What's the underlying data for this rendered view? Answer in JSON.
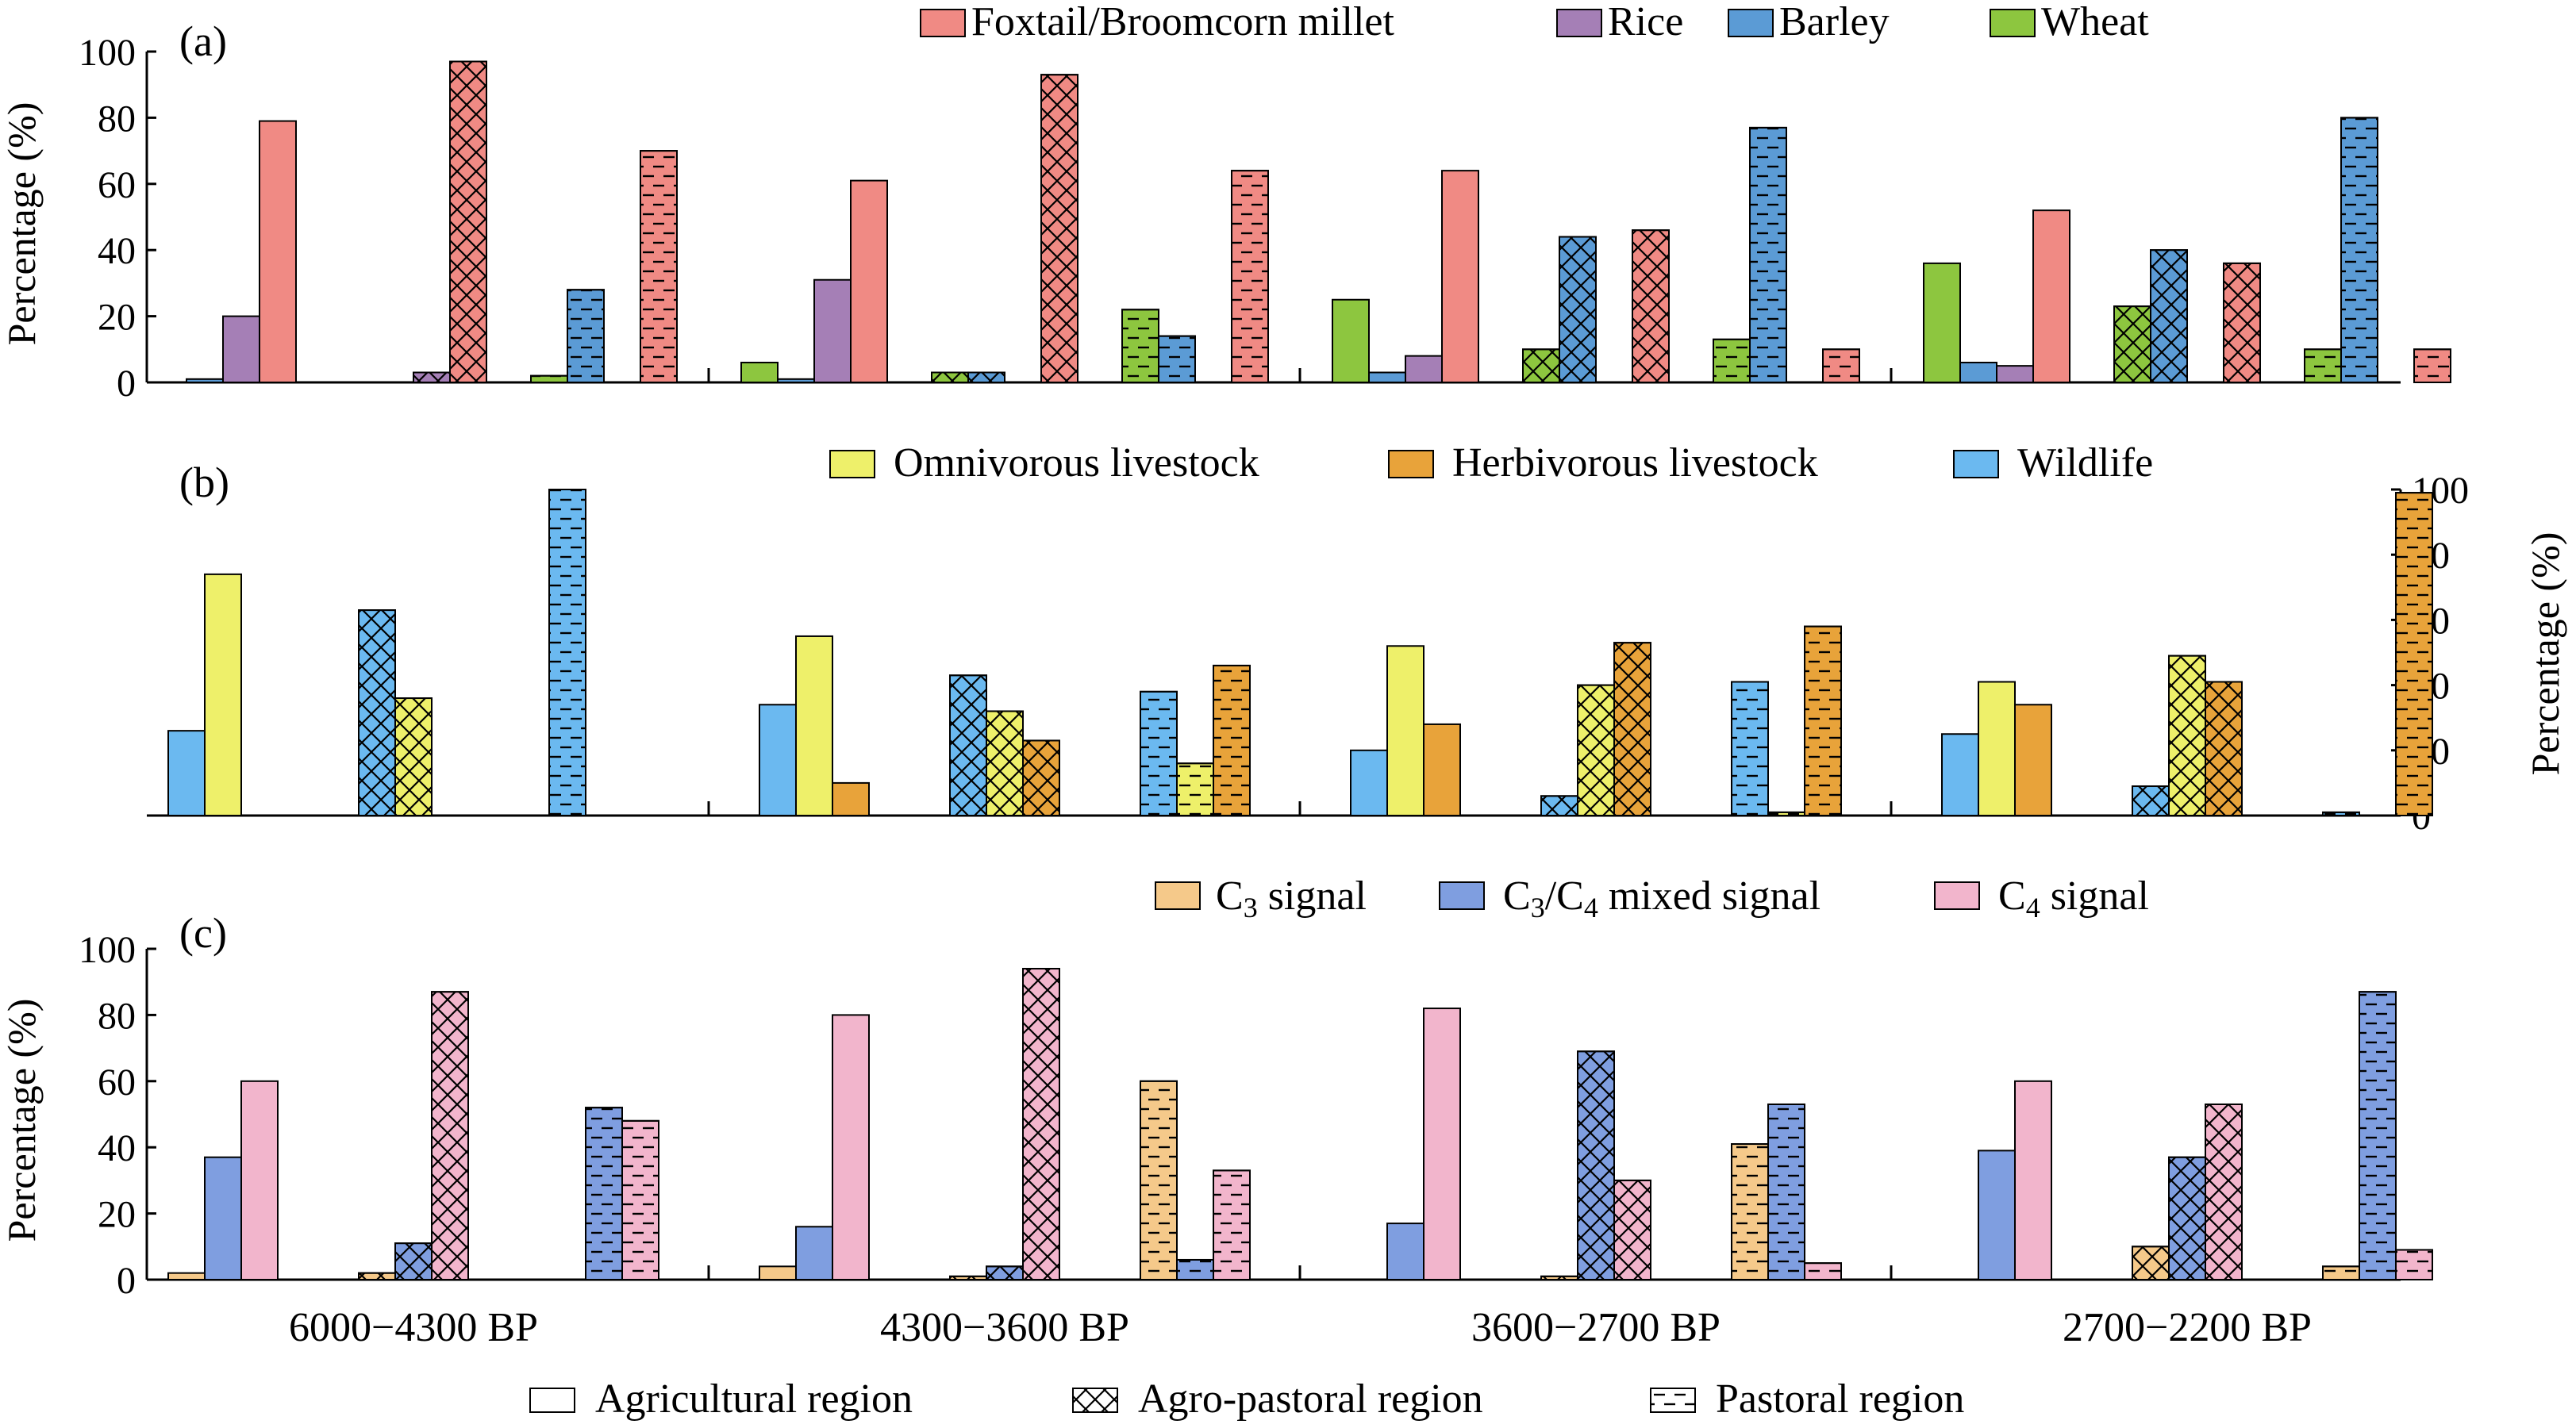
{
  "chart_data": [
    {
      "panel": "(a)",
      "type": "bar",
      "ylabel": "Percentage (%)",
      "y_axis_side": "left",
      "ylim": [
        0,
        100
      ],
      "yticks": [
        0,
        20,
        40,
        60,
        80,
        100
      ],
      "categories": [
        "6000−4300 BP",
        "4300−3600 BP",
        "3600−2700 BP",
        "2700−2200 BP"
      ],
      "regions": [
        "agricultural",
        "agro-pastoral",
        "pastoral"
      ],
      "legend": [
        "Foxtail/Broomcorn millet",
        "Rice",
        "Barley",
        "Wheat"
      ],
      "series_order": [
        "Wheat",
        "Barley",
        "Rice",
        "Foxtail/Broomcorn millet"
      ],
      "colors": {
        "Foxtail/Broomcorn millet": "#f08a84",
        "Rice": "#a57fb6",
        "Barley": "#5b9bd5",
        "Wheat": "#8dc63f"
      },
      "series": [
        {
          "name": "Wheat",
          "values": [
            [
              0,
              0,
              2
            ],
            [
              6,
              3,
              22
            ],
            [
              25,
              10,
              13
            ],
            [
              36,
              23,
              10
            ]
          ]
        },
        {
          "name": "Barley",
          "values": [
            [
              1,
              0,
              28
            ],
            [
              1,
              3,
              14
            ],
            [
              3,
              44,
              77
            ],
            [
              6,
              40,
              80
            ]
          ]
        },
        {
          "name": "Rice",
          "values": [
            [
              20,
              3,
              0
            ],
            [
              31,
              0,
              0
            ],
            [
              8,
              0,
              0
            ],
            [
              5,
              0,
              0
            ]
          ]
        },
        {
          "name": "Foxtail/Broomcorn millet",
          "values": [
            [
              79,
              97,
              70
            ],
            [
              61,
              93,
              64
            ],
            [
              64,
              46,
              10
            ],
            [
              52,
              36,
              10
            ]
          ]
        }
      ]
    },
    {
      "panel": "(b)",
      "type": "bar",
      "ylabel": "Percentage (%)",
      "y_axis_side": "right",
      "ylim": [
        0,
        100
      ],
      "yticks": [
        0,
        20,
        40,
        60,
        80,
        100
      ],
      "categories": [
        "6000−4300 BP",
        "4300−3600 BP",
        "3600−2700 BP",
        "2700−2200 BP"
      ],
      "regions": [
        "agricultural",
        "agro-pastoral",
        "pastoral"
      ],
      "legend": [
        "Omnivorous livestock",
        "Herbivorous livestock",
        "Wildlife"
      ],
      "series_order": [
        "Wildlife",
        "Omnivorous livestock",
        "Herbivorous livestock"
      ],
      "colors": {
        "Omnivorous livestock": "#eef06a",
        "Herbivorous livestock": "#e8a33a",
        "Wildlife": "#6bb9f0"
      },
      "series": [
        {
          "name": "Wildlife",
          "values": [
            [
              26,
              63,
              100
            ],
            [
              34,
              43,
              38
            ],
            [
              20,
              6,
              41
            ],
            [
              25,
              9,
              1
            ]
          ]
        },
        {
          "name": "Omnivorous livestock",
          "values": [
            [
              74,
              36,
              0
            ],
            [
              55,
              32,
              16
            ],
            [
              52,
              40,
              1
            ],
            [
              41,
              49,
              0
            ]
          ]
        },
        {
          "name": "Herbivorous livestock",
          "values": [
            [
              0,
              0,
              0
            ],
            [
              10,
              23,
              46
            ],
            [
              28,
              53,
              58
            ],
            [
              34,
              41,
              99
            ]
          ]
        }
      ]
    },
    {
      "panel": "(c)",
      "type": "bar",
      "ylabel": "Percentage (%)",
      "y_axis_side": "left",
      "ylim": [
        0,
        100
      ],
      "yticks": [
        0,
        20,
        40,
        60,
        80,
        100
      ],
      "categories": [
        "6000−4300 BP",
        "4300−3600 BP",
        "3600−2700 BP",
        "2700−2200 BP"
      ],
      "regions": [
        "agricultural",
        "agro-pastoral",
        "pastoral"
      ],
      "legend": [
        "C₃ signal",
        "C₃/C₄ mixed signal",
        "C₄ signal"
      ],
      "series_order": [
        "C3",
        "C3C4",
        "C4"
      ],
      "colors": {
        "C3": "#f5c98a",
        "C3C4": "#7f9ee0",
        "C4": "#f2b5cc"
      },
      "series": [
        {
          "name": "C3",
          "values": [
            [
              2,
              2,
              0
            ],
            [
              4,
              1,
              60
            ],
            [
              0,
              1,
              41
            ],
            [
              0,
              10,
              4
            ]
          ]
        },
        {
          "name": "C3C4",
          "values": [
            [
              37,
              11,
              52
            ],
            [
              16,
              4,
              6
            ],
            [
              17,
              69,
              53
            ],
            [
              39,
              37,
              87
            ]
          ]
        },
        {
          "name": "C4",
          "values": [
            [
              60,
              87,
              48
            ],
            [
              80,
              94,
              33
            ],
            [
              82,
              30,
              5
            ],
            [
              60,
              53,
              9
            ]
          ]
        }
      ]
    }
  ],
  "legend_a": [
    "Foxtail/Broomcorn millet",
    "Rice",
    "Barley",
    "Wheat"
  ],
  "legend_b": [
    "Omnivorous livestock",
    "Herbivorous livestock",
    "Wildlife"
  ],
  "legend_c": {
    "c3_main": "C",
    "c3_sub": "3",
    "c3_suffix": " signal",
    "mixed_main1": "C",
    "mixed_sub1": "3",
    "mixed_mid": "/C",
    "mixed_sub2": "4",
    "mixed_suffix": " mixed signal",
    "c4_main": "C",
    "c4_sub": "4",
    "c4_suffix": " signal"
  },
  "bottom_legend": [
    "Agricultural region",
    "Agro-pastoral region",
    "Pastoral region"
  ],
  "x_labels": [
    "6000−4300 BP",
    "4300−3600 BP",
    "3600−2700 BP",
    "2700−2200 BP"
  ],
  "panel_labels": [
    "(a)",
    "(b)",
    "(c)"
  ],
  "ylabel": "Percentage (%)"
}
